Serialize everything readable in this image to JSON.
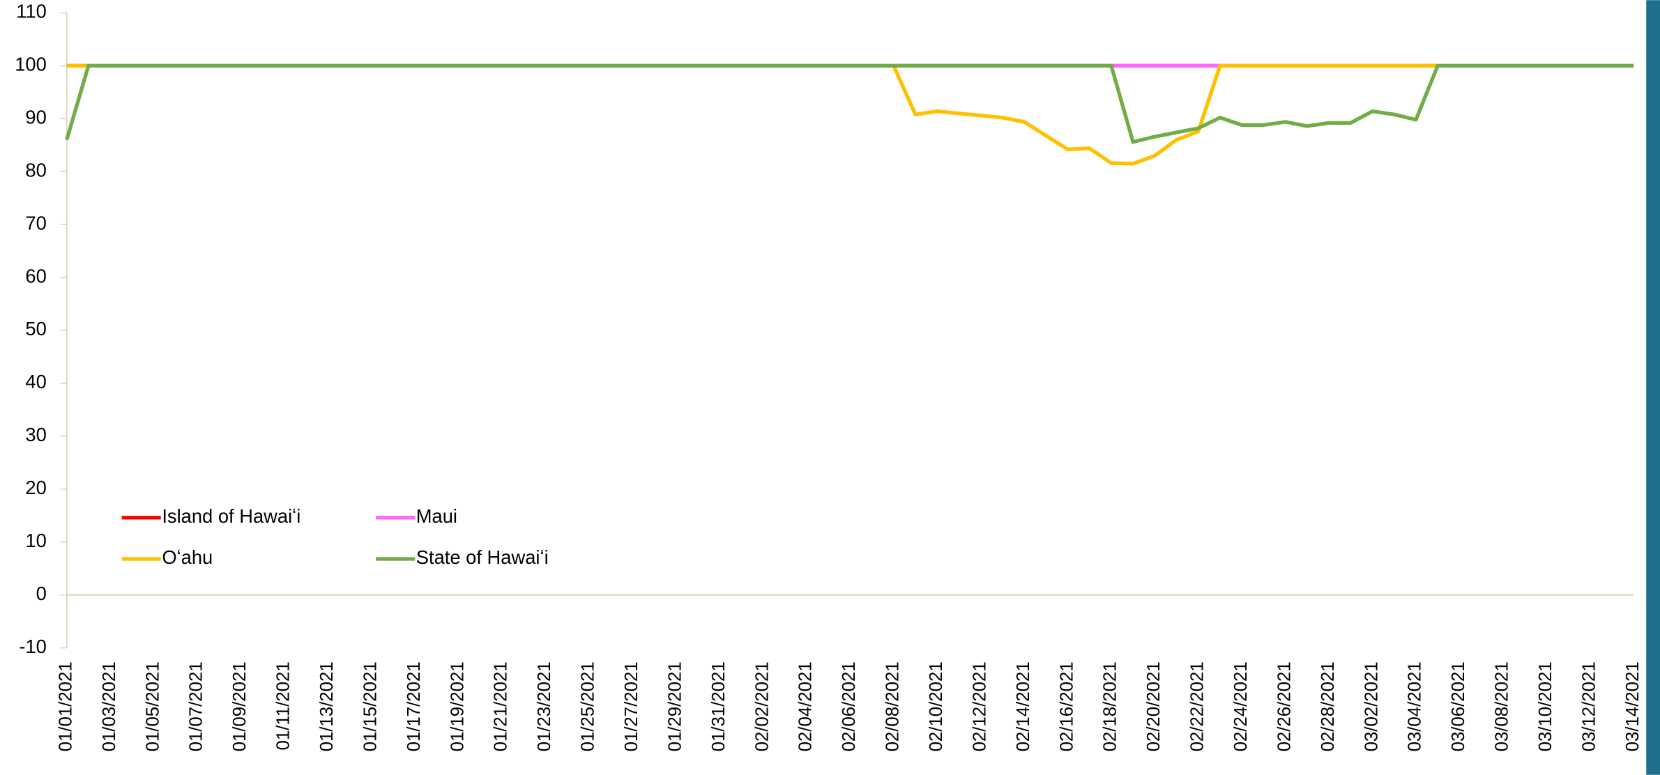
{
  "chart_data": {
    "type": "line",
    "categories": [
      "01/01/2021",
      null,
      "01/03/2021",
      null,
      "01/05/2021",
      null,
      "01/07/2021",
      null,
      "01/09/2021",
      null,
      "01/11/2021",
      null,
      "01/13/2021",
      null,
      "01/15/2021",
      null,
      "01/17/2021",
      null,
      "01/19/2021",
      null,
      "01/21/2021",
      null,
      "01/23/2021",
      null,
      "01/25/2021",
      null,
      "01/27/2021",
      null,
      "01/29/2021",
      null,
      "01/31/2021",
      null,
      "02/02/2021",
      null,
      "02/04/2021",
      null,
      "02/06/2021",
      null,
      "02/08/2021",
      null,
      "02/10/2021",
      null,
      "02/12/2021",
      null,
      "02/14/2021",
      null,
      "02/16/2021",
      null,
      "02/18/2021",
      null,
      "02/20/2021",
      null,
      "02/22/2021",
      null,
      "02/24/2021",
      null,
      "02/26/2021",
      null,
      "02/28/2021",
      null,
      "03/02/2021",
      null,
      "03/04/2021",
      null,
      "03/06/2021",
      null,
      "03/08/2021",
      null,
      "03/10/2021",
      null,
      "03/12/2021",
      null,
      "03/14/2021"
    ],
    "series": [
      {
        "name": "Island of Hawaiʻi",
        "color": "#ff0000",
        "values": [
          100,
          100,
          100,
          100,
          100,
          100,
          100,
          100,
          100,
          100,
          100,
          100,
          100,
          100,
          100,
          100,
          100,
          100,
          100,
          100,
          100,
          100,
          100,
          100,
          100,
          100,
          100,
          100,
          100,
          100,
          100,
          100,
          100,
          100,
          100,
          100,
          100,
          100,
          100,
          100,
          100,
          100,
          100,
          100,
          100,
          100,
          100,
          100,
          100,
          100,
          100,
          100,
          100,
          100,
          100,
          100,
          100,
          100,
          100,
          100,
          100,
          100,
          100,
          100,
          100,
          100,
          100,
          100,
          100,
          100,
          100,
          100,
          100
        ]
      },
      {
        "name": "Maui",
        "color": "#ff66ff",
        "values": [
          100,
          100,
          100,
          100,
          100,
          100,
          100,
          100,
          100,
          100,
          100,
          100,
          100,
          100,
          100,
          100,
          100,
          100,
          100,
          100,
          100,
          100,
          100,
          100,
          100,
          100,
          100,
          100,
          100,
          100,
          100,
          100,
          100,
          100,
          100,
          100,
          100,
          100,
          100,
          100,
          100,
          100,
          100,
          100,
          100,
          100,
          100,
          100,
          100,
          100,
          100,
          100,
          100,
          100,
          100,
          100,
          100,
          100,
          100,
          100,
          100,
          100,
          100,
          100,
          100,
          100,
          100,
          100,
          100,
          100,
          100,
          100,
          100
        ]
      },
      {
        "name": "Oʻahu",
        "color": "#ffc000",
        "values": [
          100,
          100,
          100,
          100,
          100,
          100,
          100,
          100,
          100,
          100,
          100,
          100,
          100,
          100,
          100,
          100,
          100,
          100,
          100,
          100,
          100,
          100,
          100,
          100,
          100,
          100,
          100,
          100,
          100,
          100,
          100,
          100,
          100,
          100,
          100,
          100,
          100,
          100,
          100,
          90.8,
          91.4,
          91.0,
          90.6,
          90.2,
          89.4,
          86.8,
          84.2,
          84.4,
          81.6,
          81.5,
          83,
          86,
          87.6,
          100,
          100,
          100,
          100,
          100,
          100,
          100,
          100,
          100,
          100,
          100,
          100,
          100,
          100,
          100,
          100,
          100,
          100,
          100,
          100
        ]
      },
      {
        "name": "State of Hawaiʻi",
        "color": "#70ad47",
        "values": [
          86,
          100,
          100,
          100,
          100,
          100,
          100,
          100,
          100,
          100,
          100,
          100,
          100,
          100,
          100,
          100,
          100,
          100,
          100,
          100,
          100,
          100,
          100,
          100,
          100,
          100,
          100,
          100,
          100,
          100,
          100,
          100,
          100,
          100,
          100,
          100,
          100,
          100,
          100,
          100,
          100,
          100,
          100,
          100,
          100,
          100,
          100,
          100,
          100,
          85.6,
          86.6,
          87.4,
          88.2,
          90.2,
          88.8,
          88.8,
          89.4,
          88.6,
          89.2,
          89.2,
          91.4,
          90.8,
          89.8,
          100,
          100,
          100,
          100,
          100,
          100,
          100,
          100,
          100,
          100
        ]
      }
    ],
    "ylim": [
      -10,
      110
    ],
    "yticks": [
      -10,
      0,
      10,
      20,
      30,
      40,
      50,
      60,
      70,
      80,
      90,
      100,
      110
    ]
  }
}
